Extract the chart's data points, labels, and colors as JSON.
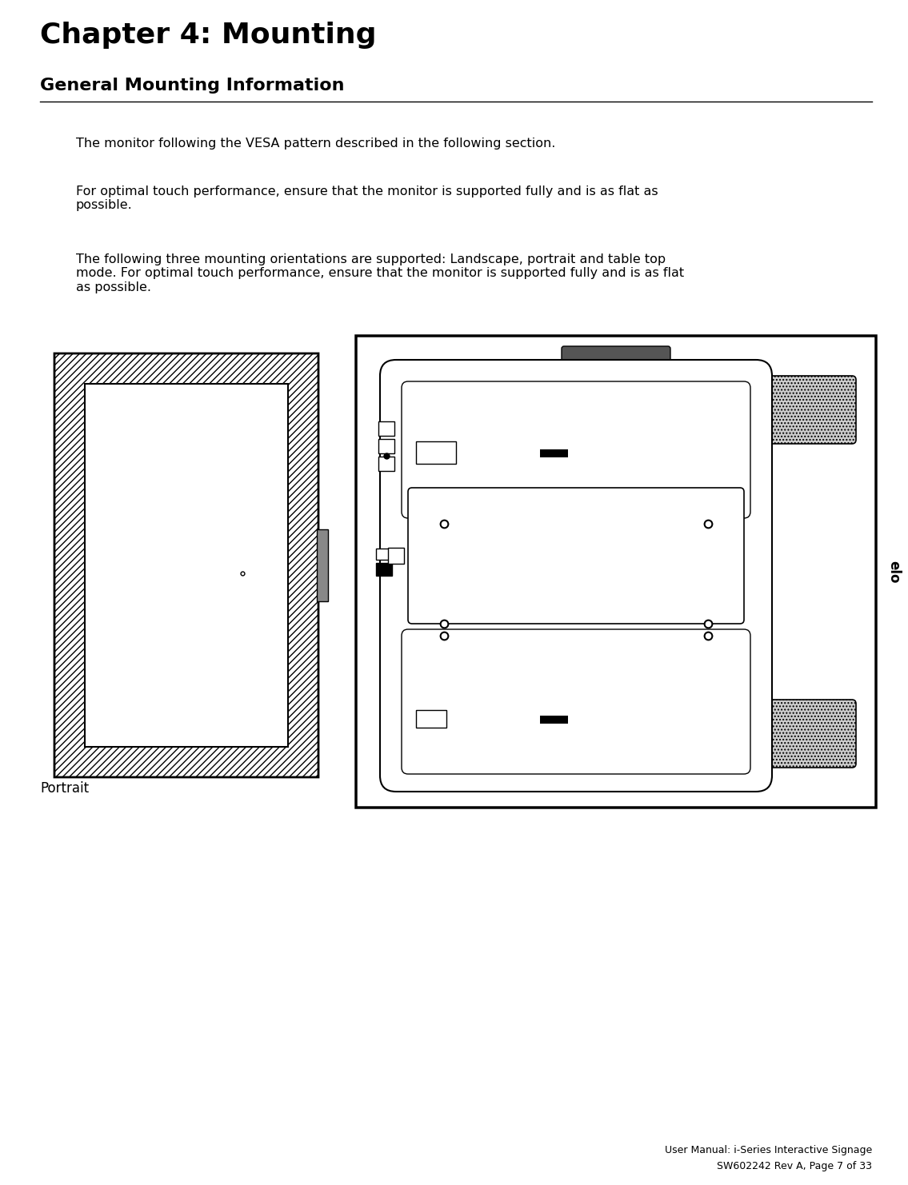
{
  "title": "Chapter 4: Mounting",
  "section_title": "General Mounting Information",
  "paragraph1": "The monitor following the VESA pattern described in the following section.",
  "paragraph2": "For optimal touch performance, ensure that the monitor is supported fully and is as flat as\npossible.",
  "paragraph3": "The following three mounting orientations are supported: Landscape, portrait and table top\nmode. For optimal touch performance, ensure that the monitor is supported fully and is as flat\nas possible.",
  "caption": "Portrait",
  "footer_line1": "User Manual: i-Series Interactive Signage",
  "footer_line2": "SW602242 Rev A, Page 7 of 33",
  "bg_color": "#ffffff",
  "text_color": "#000000",
  "title_fontsize": 26,
  "section_fontsize": 16,
  "body_fontsize": 11.5,
  "caption_fontsize": 12,
  "footer_fontsize": 9
}
